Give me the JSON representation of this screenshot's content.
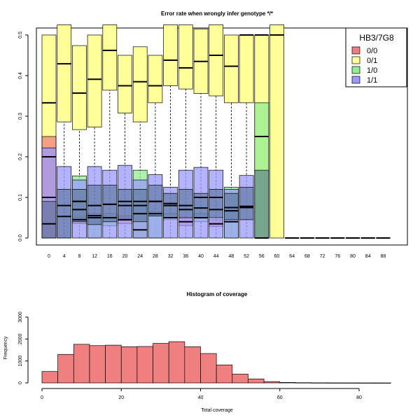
{
  "chart_data": [
    {
      "type": "boxplot",
      "title": "Error rate when wrongly infer genotype */*",
      "xlabel": "",
      "ylabel": "",
      "ylim": [
        0,
        0.52
      ],
      "yticks": [
        0.0,
        0.1,
        0.2,
        0.3,
        0.4,
        0.5
      ],
      "ytick_labels": [
        "0.0",
        "0.1",
        "0.2",
        "0.3",
        "0.4",
        "0.5"
      ],
      "categories": [
        "0",
        "4",
        "8",
        "12",
        "16",
        "20",
        "24",
        "28",
        "32",
        "36",
        "40",
        "44",
        "48",
        "52",
        "56",
        "60",
        "64",
        "68",
        "72",
        "76",
        "80",
        "84",
        "88"
      ],
      "legend": {
        "title": "HB3/7G8",
        "position": "top-right",
        "entries": [
          {
            "label": "0/0",
            "color": "#f08080"
          },
          {
            "label": "0/1",
            "color": "#ffff99"
          },
          {
            "label": "1/0",
            "color": "#90ee90"
          },
          {
            "label": "1/1",
            "color": "#9999ff"
          }
        ]
      },
      "series": [
        {
          "name": "0/1",
          "color": "#ffff99",
          "boxes": [
            {
              "x": 0,
              "q1": 0.0,
              "median": 0.333,
              "q3": 0.5
            },
            {
              "x": 4,
              "q1": 0.286,
              "median": 0.429,
              "q3": 0.55
            },
            {
              "x": 8,
              "q1": 0.267,
              "median": 0.357,
              "q3": 0.474
            },
            {
              "x": 12,
              "q1": 0.273,
              "median": 0.391,
              "q3": 0.5
            },
            {
              "x": 16,
              "q1": 0.364,
              "median": 0.462,
              "q3": 0.55
            },
            {
              "x": 20,
              "q1": 0.308,
              "median": 0.375,
              "q3": 0.45
            },
            {
              "x": 24,
              "q1": 0.286,
              "median": 0.385,
              "q3": 0.471
            },
            {
              "x": 28,
              "q1": 0.333,
              "median": 0.375,
              "q3": 0.45
            },
            {
              "x": 32,
              "q1": 0.375,
              "median": 0.438,
              "q3": 0.55
            },
            {
              "x": 36,
              "q1": 0.367,
              "median": 0.419,
              "q3": 0.55
            },
            {
              "x": 40,
              "q1": 0.356,
              "median": 0.435,
              "q3": 0.515
            },
            {
              "x": 44,
              "q1": 0.35,
              "median": 0.45,
              "q3": 0.55
            },
            {
              "x": 48,
              "q1": 0.333,
              "median": 0.423,
              "q3": 0.5
            },
            {
              "x": 52,
              "q1": 0.333,
              "median": 0.5,
              "q3": 0.5
            },
            {
              "x": 56,
              "q1": 0.0,
              "median": 0.5,
              "q3": 0.5
            },
            {
              "x": 60,
              "q1": 0.0,
              "median": 0.5,
              "q3": 0.55
            }
          ]
        },
        {
          "name": "0/0",
          "color": "#f08080",
          "boxes": [
            {
              "x": 0,
              "q1": 0.0,
              "median": 0.2,
              "q3": 0.25
            },
            {
              "x": 8,
              "q1": 0.035,
              "median": 0.045,
              "q3": 0.055
            },
            {
              "x": 20,
              "q1": 0.035,
              "median": 0.045,
              "q3": 0.055
            },
            {
              "x": 24,
              "q1": 0.0,
              "median": 0.02,
              "q3": 0.04
            },
            {
              "x": 36,
              "q1": 0.03,
              "median": 0.04,
              "q3": 0.05
            },
            {
              "x": 44,
              "q1": 0.028,
              "median": 0.035,
              "q3": 0.045
            }
          ]
        },
        {
          "name": "1/0",
          "color": "#90ee90",
          "boxes": [
            {
              "x": 8,
              "q1": 0.05,
              "median": 0.07,
              "q3": 0.153
            },
            {
              "x": 12,
              "q1": 0.0,
              "median": 0.05,
              "q3": 0.06
            },
            {
              "x": 16,
              "q1": 0.03,
              "median": 0.05,
              "q3": 0.06
            },
            {
              "x": 24,
              "q1": 0.0,
              "median": 0.06,
              "q3": 0.167
            },
            {
              "x": 28,
              "q1": 0.0,
              "median": 0.06,
              "q3": 0.065
            },
            {
              "x": 32,
              "q1": 0.045,
              "median": 0.05,
              "q3": 0.06
            },
            {
              "x": 40,
              "q1": 0.04,
              "median": 0.05,
              "q3": 0.06
            },
            {
              "x": 48,
              "q1": 0.0,
              "median": 0.04,
              "q3": 0.125
            },
            {
              "x": 56,
              "q1": 0.0,
              "median": 0.25,
              "q3": 0.333
            }
          ]
        },
        {
          "name": "1/1",
          "color": "#9999ff",
          "boxes": [
            {
              "x": 0,
              "q1": 0.0,
              "median": 0.1,
              "q3": 0.222
            },
            {
              "x": 4,
              "q1": 0.0,
              "median": 0.08,
              "q3": 0.176
            },
            {
              "x": 8,
              "q1": 0.0,
              "median": 0.09,
              "q3": 0.143
            },
            {
              "x": 12,
              "q1": 0.0,
              "median": 0.08,
              "q3": 0.176
            },
            {
              "x": 16,
              "q1": 0.0,
              "median": 0.083,
              "q3": 0.167
            },
            {
              "x": 20,
              "q1": 0.0,
              "median": 0.09,
              "q3": 0.179
            },
            {
              "x": 24,
              "q1": 0.0,
              "median": 0.09,
              "q3": 0.143
            },
            {
              "x": 28,
              "q1": 0.0,
              "median": 0.09,
              "q3": 0.156
            },
            {
              "x": 32,
              "q1": 0.0,
              "median": 0.08,
              "q3": 0.125
            },
            {
              "x": 36,
              "q1": 0.0,
              "median": 0.08,
              "q3": 0.167
            },
            {
              "x": 40,
              "q1": 0.0,
              "median": 0.1,
              "q3": 0.174
            },
            {
              "x": 44,
              "q1": 0.0,
              "median": 0.1,
              "q3": 0.167
            },
            {
              "x": 48,
              "q1": 0.0,
              "median": 0.075,
              "q3": 0.12
            },
            {
              "x": 52,
              "q1": 0.0,
              "median": 0.075,
              "q3": 0.154
            }
          ]
        },
        {
          "name": "overall",
          "color": "#4a6a8a",
          "boxes": [
            {
              "x": 0,
              "q1": 0.0,
              "median": 0.035,
              "q3": 0.09
            },
            {
              "x": 4,
              "q1": 0.0,
              "median": 0.053,
              "q3": 0.12
            },
            {
              "x": 8,
              "q1": 0.04,
              "median": 0.09,
              "q3": 0.12
            },
            {
              "x": 12,
              "q1": 0.033,
              "median": 0.055,
              "q3": 0.13
            },
            {
              "x": 16,
              "q1": 0.04,
              "median": 0.083,
              "q3": 0.13
            },
            {
              "x": 20,
              "q1": 0.044,
              "median": 0.08,
              "q3": 0.12
            },
            {
              "x": 24,
              "q1": 0.04,
              "median": 0.08,
              "q3": 0.12
            },
            {
              "x": 28,
              "q1": 0.054,
              "median": 0.09,
              "q3": 0.13
            },
            {
              "x": 32,
              "q1": 0.05,
              "median": 0.085,
              "q3": 0.11
            },
            {
              "x": 36,
              "q1": 0.05,
              "median": 0.07,
              "q3": 0.12
            },
            {
              "x": 40,
              "q1": 0.05,
              "median": 0.074,
              "q3": 0.11
            },
            {
              "x": 44,
              "q1": 0.05,
              "median": 0.07,
              "q3": 0.12
            },
            {
              "x": 48,
              "q1": 0.045,
              "median": 0.067,
              "q3": 0.11
            },
            {
              "x": 52,
              "q1": 0.045,
              "median": 0.078,
              "q3": 0.125
            },
            {
              "x": 56,
              "q1": 0.0,
              "median": 0.0,
              "q3": 0.167
            },
            {
              "x": 64,
              "q1": 0.0,
              "median": 0.0,
              "q3": 0.0
            },
            {
              "x": 68,
              "q1": 0.0,
              "median": 0.0,
              "q3": 0.0
            },
            {
              "x": 72,
              "q1": 0.0,
              "median": 0.0,
              "q3": 0.0
            },
            {
              "x": 76,
              "q1": 0.0,
              "median": 0.0,
              "q3": 0.0
            },
            {
              "x": 80,
              "q1": 0.0,
              "median": 0.0,
              "q3": 0.0
            },
            {
              "x": 84,
              "q1": 0.0,
              "median": 0.0,
              "q3": 0.0
            },
            {
              "x": 88,
              "q1": 0.0,
              "median": 0.0,
              "q3": 0.0
            }
          ]
        }
      ]
    },
    {
      "type": "bar",
      "title": "Histogram of coverage",
      "xlabel": "Total coverage",
      "ylabel": "Frequency",
      "xlim": [
        0,
        88
      ],
      "ylim": [
        0,
        3000
      ],
      "xticks": [
        0,
        20,
        40,
        60,
        80
      ],
      "yticks": [
        0,
        1000,
        2000,
        3000
      ],
      "bin_width": 4,
      "bin_starts": [
        0,
        4,
        8,
        12,
        16,
        20,
        24,
        28,
        32,
        36,
        40,
        44,
        48,
        52,
        56,
        60,
        64,
        68,
        72,
        76,
        80,
        84
      ],
      "values": [
        520,
        1300,
        1760,
        1700,
        1720,
        1650,
        1660,
        1800,
        1880,
        1650,
        1340,
        820,
        400,
        180,
        60,
        20,
        10,
        5,
        3,
        2,
        1,
        1
      ],
      "bar_color": "#f08080"
    }
  ]
}
